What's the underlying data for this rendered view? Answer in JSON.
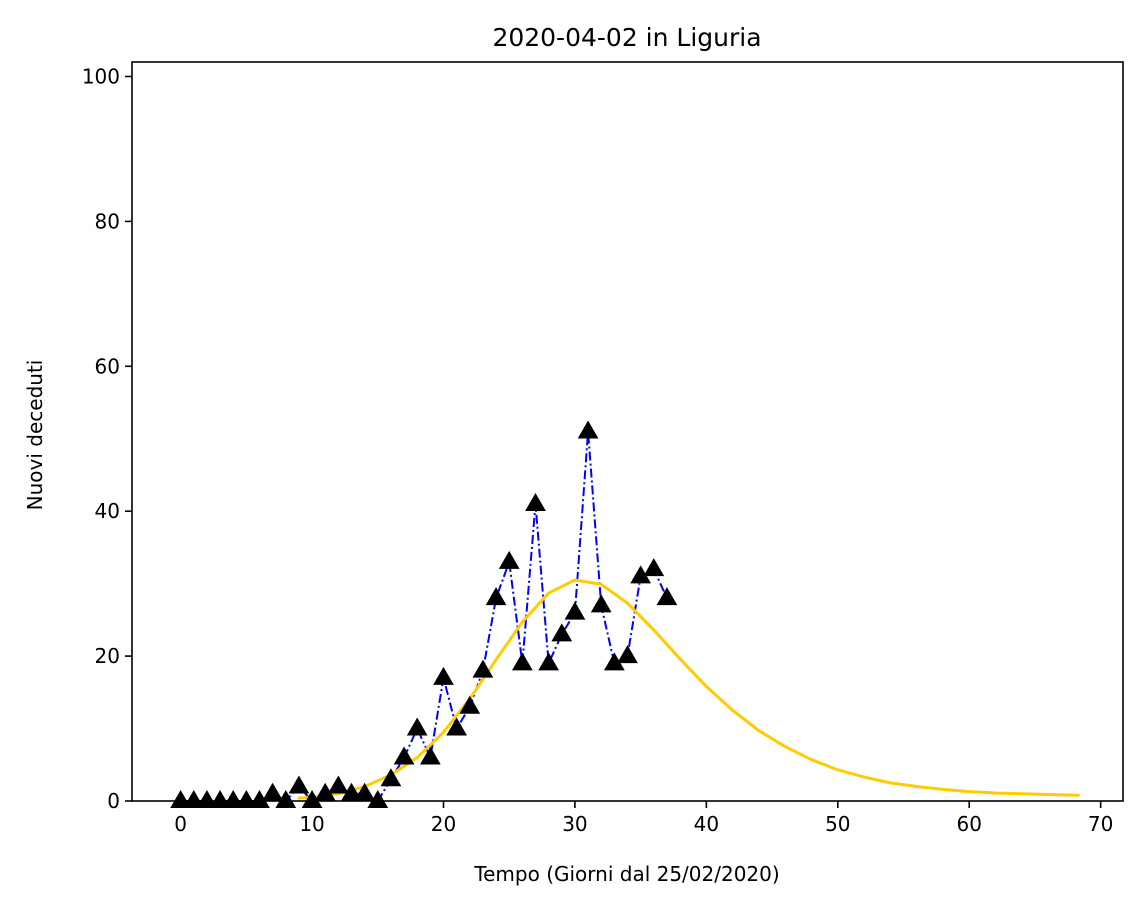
{
  "chart_data": {
    "type": "line",
    "title": "2020-04-02 in Liguria",
    "xlabel": "Tempo (Giorni dal 25/02/2020)",
    "ylabel": "Nuovi deceduti",
    "xlim": [
      -3.7,
      71.7
    ],
    "ylim": [
      0,
      102
    ],
    "xticks": [
      0,
      10,
      20,
      30,
      40,
      50,
      60,
      70
    ],
    "yticks": [
      0,
      20,
      40,
      60,
      80,
      100
    ],
    "grid": false,
    "legend": "none",
    "series": [
      {
        "style": "dash-dot line with triangle markers",
        "line_color": "#0000ff",
        "marker_color": "#000000",
        "x": [
          0,
          1,
          2,
          3,
          4,
          5,
          6,
          7,
          8,
          9,
          10,
          11,
          12,
          13,
          14,
          15,
          16,
          17,
          18,
          19,
          20,
          21,
          22,
          23,
          24,
          25,
          26,
          27,
          28,
          29,
          30,
          31,
          32,
          33,
          34,
          35,
          36,
          37
        ],
        "y": [
          0,
          0,
          0,
          0,
          0,
          0,
          0,
          1,
          0,
          2,
          0,
          1,
          2,
          1,
          1,
          0,
          3,
          6,
          10,
          6,
          17,
          10,
          13,
          18,
          28,
          33,
          19,
          41,
          19,
          23,
          26,
          51,
          27,
          19,
          20,
          31,
          32,
          28
        ]
      },
      {
        "style": "solid fitted curve",
        "color": "#ffcc00",
        "x": [
          9,
          10,
          12,
          14,
          16,
          18,
          20,
          22,
          24,
          26,
          28,
          30,
          32,
          34,
          36,
          38,
          40,
          42,
          44,
          46,
          48,
          50,
          52,
          54,
          56,
          58,
          60,
          62,
          64,
          66,
          68.3
        ],
        "y": [
          0.4,
          0.5,
          1.0,
          2.0,
          3.6,
          6.0,
          9.5,
          14.1,
          19.5,
          24.7,
          28.7,
          30.5,
          29.9,
          27.3,
          23.6,
          19.6,
          15.8,
          12.5,
          9.7,
          7.5,
          5.7,
          4.3,
          3.3,
          2.5,
          2.0,
          1.6,
          1.3,
          1.1,
          1.0,
          0.9,
          0.8
        ]
      }
    ]
  }
}
